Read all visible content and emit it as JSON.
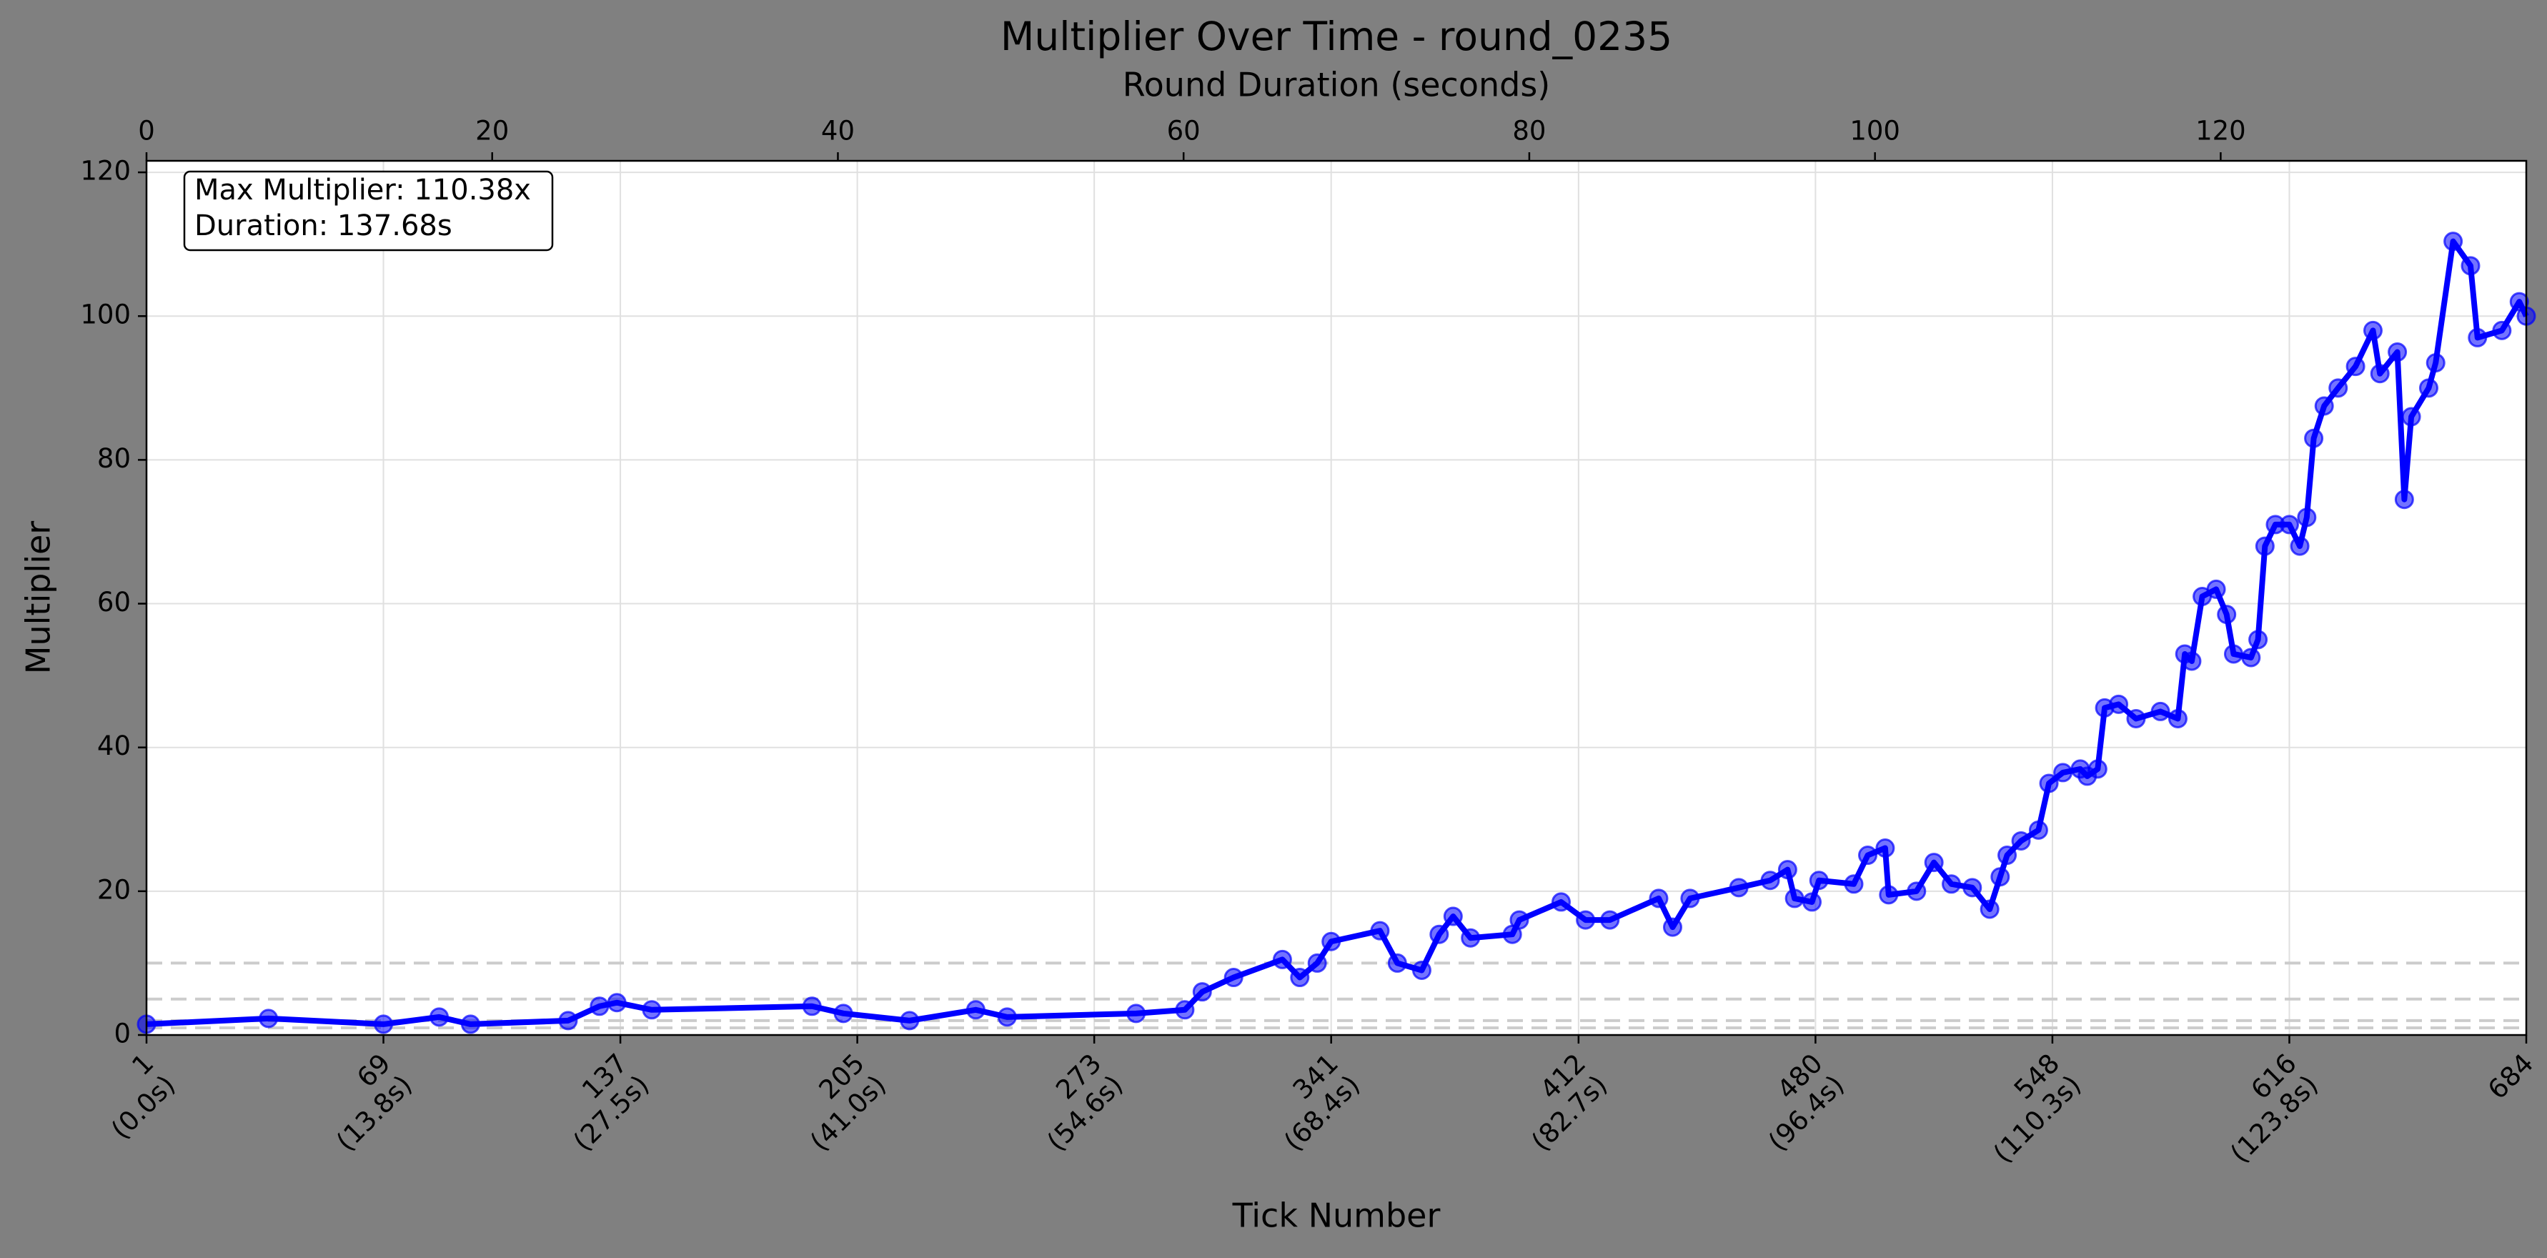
{
  "chart_data": {
    "type": "line",
    "title": "Multiplier Over Time - round_0235",
    "x2_label": "Round Duration (seconds)",
    "xlabel": "Tick Number",
    "ylabel": "Multiplier",
    "annotation": [
      "Max Multiplier: 110.38x",
      "Duration: 137.68s"
    ],
    "xlim": [
      1,
      684
    ],
    "x2lim": [
      0,
      137.68
    ],
    "ylim": [
      0,
      121.6
    ],
    "yticks": [
      0,
      20,
      40,
      60,
      80,
      100,
      120
    ],
    "x2ticks": [
      0,
      20,
      40,
      60,
      80,
      100,
      120
    ],
    "xticks": [
      {
        "value": 1,
        "label": "1\n(0.0s)"
      },
      {
        "value": 69,
        "label": "69\n(13.8s)"
      },
      {
        "value": 137,
        "label": "137\n(27.5s)"
      },
      {
        "value": 205,
        "label": "205\n(41.0s)"
      },
      {
        "value": 273,
        "label": "273\n(54.6s)"
      },
      {
        "value": 341,
        "label": "341\n(68.4s)"
      },
      {
        "value": 412,
        "label": "412\n(82.7s)"
      },
      {
        "value": 480,
        "label": "480\n(96.4s)"
      },
      {
        "value": 548,
        "label": "548\n(110.3s)"
      },
      {
        "value": 616,
        "label": "616\n(123.8s)"
      },
      {
        "value": 684,
        "label": "684"
      }
    ],
    "reference_lines": [
      1,
      2,
      5,
      10
    ],
    "grid": true,
    "series": [
      {
        "color": "#0000ff",
        "x": [
          1,
          36,
          69,
          85,
          94,
          122,
          131,
          136,
          146,
          192,
          201,
          220,
          239,
          248,
          285,
          299,
          304,
          313,
          327,
          332,
          337,
          341,
          355,
          360,
          367,
          372,
          376,
          381,
          393,
          395,
          407,
          414,
          421,
          435,
          439,
          444,
          458,
          467,
          472,
          474,
          479,
          481,
          491,
          495,
          500,
          501,
          509,
          514,
          519,
          525,
          530,
          533,
          535,
          539,
          544,
          547,
          551,
          556,
          558,
          561,
          563,
          567,
          572,
          579,
          584,
          586,
          588,
          591,
          595,
          598,
          600,
          605,
          607,
          609,
          612,
          616,
          619,
          621,
          623,
          626,
          630,
          635,
          640,
          642,
          647,
          649,
          651,
          656,
          658,
          663,
          668,
          670,
          677,
          682,
          684
        ],
        "values": [
          1.5,
          2.3,
          1.5,
          2.5,
          1.5,
          2,
          4,
          4.5,
          3.5,
          4,
          3,
          2,
          3.5,
          2.5,
          3,
          3.5,
          6,
          8,
          10.5,
          8,
          10,
          13,
          14.5,
          10,
          9,
          14,
          16.5,
          13.5,
          14,
          16,
          18.5,
          16,
          16,
          19,
          15,
          19,
          20.5,
          21.5,
          23,
          19,
          18.5,
          21.5,
          21,
          25,
          26,
          19.5,
          20,
          24,
          21,
          20.5,
          17.5,
          22,
          25,
          27,
          28.5,
          35,
          36.5,
          37,
          36,
          37,
          45.5,
          46,
          44,
          45,
          44,
          53,
          52,
          61,
          62,
          58.5,
          53,
          52.5,
          55,
          68,
          71,
          71,
          68,
          72,
          83,
          87.5,
          90,
          93,
          98,
          92,
          95,
          74.5,
          86,
          90,
          93.5,
          110.4,
          107,
          97,
          98,
          102,
          100
        ]
      }
    ]
  }
}
